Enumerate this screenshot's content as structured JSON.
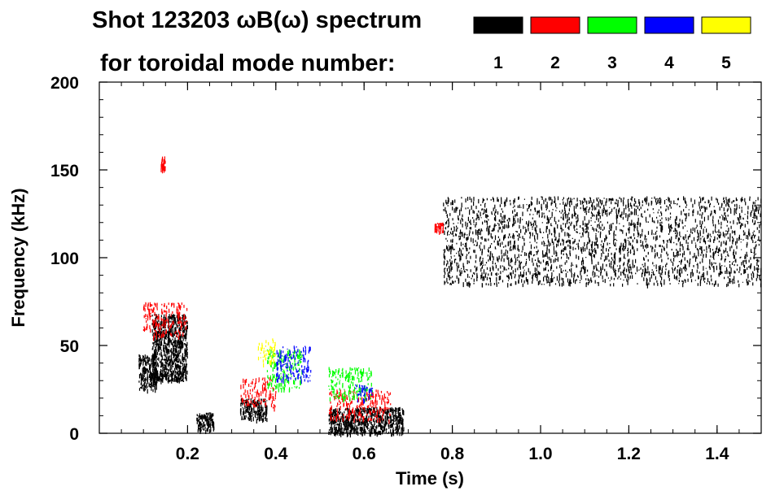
{
  "chart_data": {
    "type": "scatter",
    "title_line1": "Shot 123203 ωB(ω) spectrum",
    "title_line2": "for toroidal mode number:",
    "xlabel": "Time (s)",
    "ylabel": "Frequency (kHz)",
    "xlim": [
      0.0,
      1.5
    ],
    "ylim": [
      0,
      200
    ],
    "x_ticks": [
      {
        "value": 0.2,
        "label": "0.2"
      },
      {
        "value": 0.4,
        "label": "0.4"
      },
      {
        "value": 0.6,
        "label": "0.6"
      },
      {
        "value": 0.8,
        "label": "0.8"
      },
      {
        "value": 1.0,
        "label": "1.0"
      },
      {
        "value": 1.2,
        "label": "1.2"
      },
      {
        "value": 1.4,
        "label": "1.4"
      }
    ],
    "y_ticks": [
      {
        "value": 0,
        "label": "0"
      },
      {
        "value": 50,
        "label": "50"
      },
      {
        "value": 100,
        "label": "100"
      },
      {
        "value": 150,
        "label": "150"
      },
      {
        "value": 200,
        "label": "200"
      }
    ],
    "legend": [
      {
        "label": "1",
        "color": "#000000"
      },
      {
        "label": "2",
        "color": "#ff0000"
      },
      {
        "label": "3",
        "color": "#00ff00"
      },
      {
        "label": "4",
        "color": "#0000ff"
      },
      {
        "label": "5",
        "color": "#ffff00"
      }
    ],
    "series": [
      {
        "name": "n=1",
        "color": "#000000",
        "regions": [
          {
            "t": [
              0.09,
              0.13
            ],
            "f": [
              25,
              45
            ]
          },
          {
            "t": [
              0.12,
              0.2
            ],
            "f": [
              30,
              68
            ]
          },
          {
            "t": [
              0.22,
              0.26
            ],
            "f": [
              2,
              12
            ]
          },
          {
            "t": [
              0.32,
              0.38
            ],
            "f": [
              8,
              20
            ]
          },
          {
            "t": [
              0.52,
              0.69
            ],
            "f": [
              0,
              15
            ]
          },
          {
            "t": [
              0.78,
              1.5
            ],
            "f": [
              85,
              135
            ]
          }
        ]
      },
      {
        "name": "n=2",
        "color": "#ff0000",
        "regions": [
          {
            "t": [
              0.1,
              0.2
            ],
            "f": [
              55,
              75
            ]
          },
          {
            "t": [
              0.14,
              0.15
            ],
            "f": [
              150,
              158
            ]
          },
          {
            "t": [
              0.32,
              0.4
            ],
            "f": [
              15,
              32
            ]
          },
          {
            "t": [
              0.52,
              0.66
            ],
            "f": [
              8,
              25
            ]
          },
          {
            "t": [
              0.76,
              0.78
            ],
            "f": [
              115,
              120
            ]
          }
        ]
      },
      {
        "name": "n=3",
        "color": "#00ff00",
        "regions": [
          {
            "t": [
              0.38,
              0.46
            ],
            "f": [
              25,
              48
            ]
          },
          {
            "t": [
              0.52,
              0.62
            ],
            "f": [
              20,
              38
            ]
          }
        ]
      },
      {
        "name": "n=4",
        "color": "#0000ff",
        "regions": [
          {
            "t": [
              0.4,
              0.48
            ],
            "f": [
              30,
              50
            ]
          },
          {
            "t": [
              0.58,
              0.62
            ],
            "f": [
              18,
              28
            ]
          }
        ]
      },
      {
        "name": "n=5",
        "color": "#ffff00",
        "regions": [
          {
            "t": [
              0.36,
              0.4
            ],
            "f": [
              40,
              55
            ]
          }
        ]
      }
    ]
  }
}
